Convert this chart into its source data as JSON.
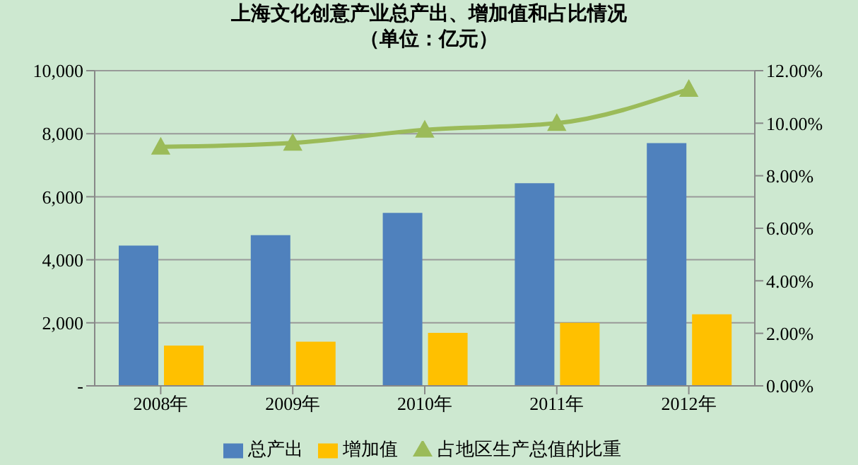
{
  "chart_data": {
    "type": "bar",
    "title": "上海文化创意产业总产出、增加值和占比情况",
    "subtitle": "（单位：亿元）",
    "categories": [
      "2008年",
      "2009年",
      "2010年",
      "2011年",
      "2012年"
    ],
    "series": [
      {
        "name": "总产出",
        "color": "#4f81bd",
        "values": [
          4450,
          4780,
          5490,
          6430,
          7700
        ]
      },
      {
        "name": "增加值",
        "color": "#ffc000",
        "values": [
          1280,
          1400,
          1680,
          2000,
          2270
        ]
      },
      {
        "name": "占地区生产总值的比重",
        "type": "line",
        "axis": "y2",
        "color": "#9bbb59",
        "marker": "triangle",
        "values": [
          9.1,
          9.25,
          9.75,
          10.0,
          11.3
        ]
      }
    ],
    "ylim": [
      0,
      10000
    ],
    "yticks": [
      {
        "value": 0,
        "label": "-"
      },
      {
        "value": 2000,
        "label": "2,000"
      },
      {
        "value": 4000,
        "label": "4,000"
      },
      {
        "value": 6000,
        "label": "6,000"
      },
      {
        "value": 8000,
        "label": "8,000"
      },
      {
        "value": 10000,
        "label": "10,000"
      }
    ],
    "y2lim": [
      0,
      12
    ],
    "y2ticks": [
      {
        "value": 0,
        "label": "0.00%"
      },
      {
        "value": 2,
        "label": "2.00%"
      },
      {
        "value": 4,
        "label": "4.00%"
      },
      {
        "value": 6,
        "label": "6.00%"
      },
      {
        "value": 8,
        "label": "8.00%"
      },
      {
        "value": 10,
        "label": "10.00%"
      },
      {
        "value": 12,
        "label": "12.00%"
      }
    ],
    "grid": "y",
    "legend": "bottom"
  }
}
